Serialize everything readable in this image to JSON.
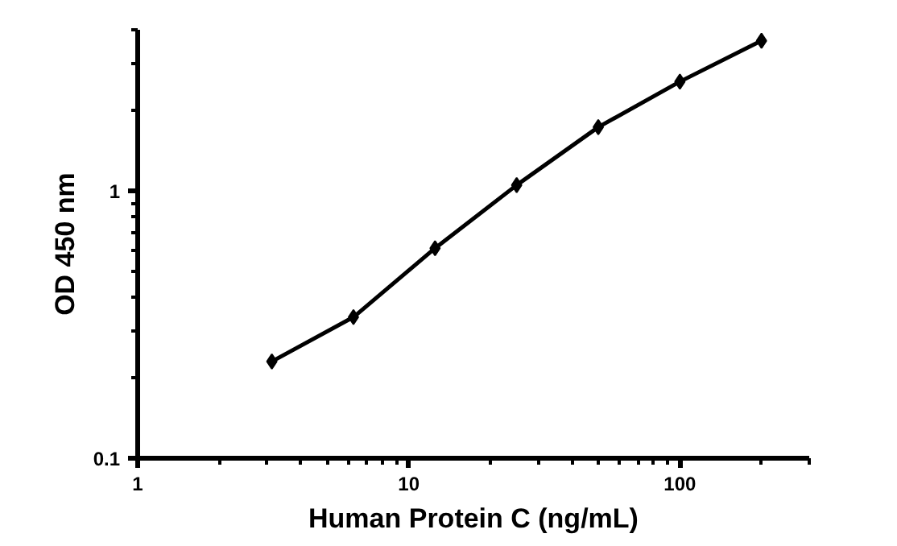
{
  "chart_data": {
    "type": "line",
    "xlabel": "Human Protein C (ng/mL)",
    "ylabel": "OD 450 nm",
    "x": [
      3.125,
      6.25,
      12.5,
      25,
      50,
      100,
      200
    ],
    "series": [
      {
        "color": "#000000",
        "values": [
          0.23,
          0.337,
          0.61,
          1.05,
          1.73,
          2.56,
          3.64
        ]
      }
    ],
    "log": "xy",
    "xlim": [
      1,
      300
    ],
    "ylim": [
      0.1,
      4
    ],
    "xticks": [
      1,
      10,
      100
    ],
    "yticks": [
      0.1,
      1
    ],
    "marker": "diamond",
    "line_style": "solid",
    "grid": false
  }
}
